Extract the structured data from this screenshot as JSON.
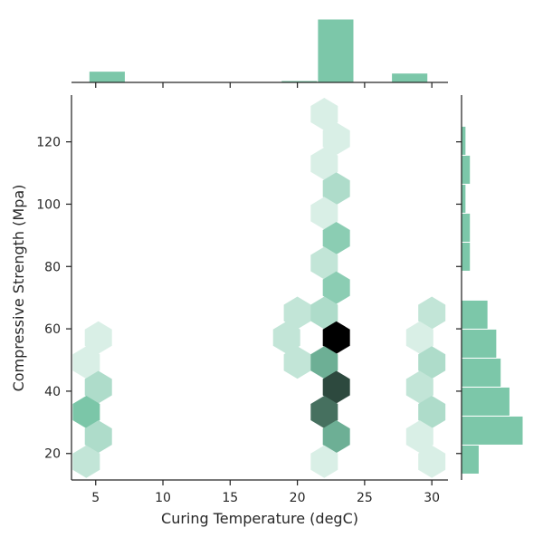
{
  "chart_data": {
    "type": "hexbin-joint",
    "title": "",
    "xlabel": "Curing Temperature (degC)",
    "ylabel": "Compressive Strength (Mpa)",
    "xlim": [
      3.2,
      31.2
    ],
    "ylim": [
      11.5,
      135
    ],
    "xticks": [
      5,
      10,
      15,
      20,
      25,
      30
    ],
    "yticks": [
      20,
      40,
      60,
      80,
      100,
      120
    ],
    "hex_color_scale": [
      "#ffffff",
      "#7cc7a9",
      "#000000"
    ],
    "hexbins": [
      {
        "x": 5.2,
        "y": 57.2,
        "count": 1
      },
      {
        "x": 4.3,
        "y": 49.2,
        "count": 1
      },
      {
        "x": 5.2,
        "y": 41.3,
        "count": 3
      },
      {
        "x": 4.3,
        "y": 33.3,
        "count": 6
      },
      {
        "x": 5.2,
        "y": 25.4,
        "count": 3
      },
      {
        "x": 4.3,
        "y": 17.4,
        "count": 2
      },
      {
        "x": 20.0,
        "y": 65.1,
        "count": 2
      },
      {
        "x": 19.2,
        "y": 57.2,
        "count": 2
      },
      {
        "x": 20.0,
        "y": 49.2,
        "count": 2
      },
      {
        "x": 22.0,
        "y": 128.9,
        "count": 1
      },
      {
        "x": 22.9,
        "y": 121.0,
        "count": 1
      },
      {
        "x": 22.0,
        "y": 113.0,
        "count": 1
      },
      {
        "x": 22.9,
        "y": 105.0,
        "count": 3
      },
      {
        "x": 22.0,
        "y": 97.1,
        "count": 1
      },
      {
        "x": 22.9,
        "y": 89.1,
        "count": 5
      },
      {
        "x": 22.0,
        "y": 81.1,
        "count": 2
      },
      {
        "x": 22.9,
        "y": 73.2,
        "count": 5
      },
      {
        "x": 22.0,
        "y": 65.1,
        "count": 3
      },
      {
        "x": 22.9,
        "y": 57.2,
        "count": 16
      },
      {
        "x": 22.0,
        "y": 49.2,
        "count": 7
      },
      {
        "x": 22.9,
        "y": 41.3,
        "count": 12
      },
      {
        "x": 22.0,
        "y": 33.3,
        "count": 10
      },
      {
        "x": 22.9,
        "y": 25.4,
        "count": 7
      },
      {
        "x": 22.0,
        "y": 17.4,
        "count": 1
      },
      {
        "x": 30.0,
        "y": 65.1,
        "count": 2
      },
      {
        "x": 29.1,
        "y": 57.2,
        "count": 1
      },
      {
        "x": 30.0,
        "y": 49.2,
        "count": 3
      },
      {
        "x": 29.1,
        "y": 41.3,
        "count": 2
      },
      {
        "x": 30.0,
        "y": 33.3,
        "count": 3
      },
      {
        "x": 29.1,
        "y": 25.4,
        "count": 1
      },
      {
        "x": 30.0,
        "y": 17.4,
        "count": 1
      }
    ],
    "hexbin_max_count": 16,
    "marginal_x": {
      "type": "histogram",
      "bins": [
        {
          "x0": 4.5,
          "x1": 7.2,
          "count": 6
        },
        {
          "x0": 18.8,
          "x1": 21.5,
          "count": 1
        },
        {
          "x0": 21.5,
          "x1": 24.2,
          "count": 34
        },
        {
          "x0": 27.0,
          "x1": 29.7,
          "count": 5
        }
      ]
    },
    "marginal_y": {
      "type": "histogram",
      "bins": [
        {
          "y0": 13.4,
          "y1": 22.7,
          "count": 4
        },
        {
          "y0": 22.7,
          "y1": 32.0,
          "count": 14
        },
        {
          "y0": 32.0,
          "y1": 41.3,
          "count": 11
        },
        {
          "y0": 41.3,
          "y1": 50.6,
          "count": 9
        },
        {
          "y0": 50.6,
          "y1": 59.9,
          "count": 8
        },
        {
          "y0": 59.9,
          "y1": 69.2,
          "count": 6
        },
        {
          "y0": 69.2,
          "y1": 78.5,
          "count": 0
        },
        {
          "y0": 78.5,
          "y1": 87.8,
          "count": 2
        },
        {
          "y0": 87.8,
          "y1": 97.1,
          "count": 2
        },
        {
          "y0": 97.1,
          "y1": 106.4,
          "count": 1
        },
        {
          "y0": 106.4,
          "y1": 115.7,
          "count": 2
        },
        {
          "y0": 115.7,
          "y1": 125.0,
          "count": 1
        },
        {
          "y0": 125.0,
          "y1": 134.3,
          "count": 0
        }
      ]
    },
    "bar_color": "#7cc7a9",
    "axis_color": "#262626"
  }
}
